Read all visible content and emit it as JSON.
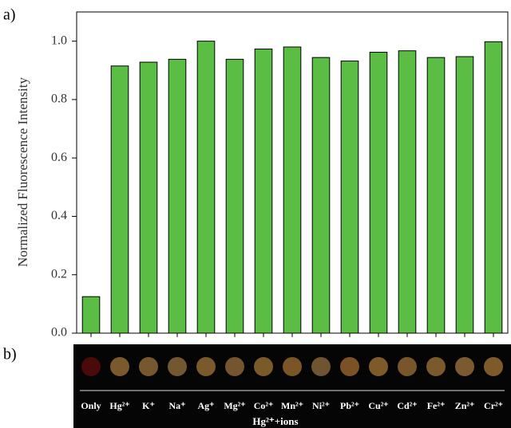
{
  "chart_data": {
    "type": "bar",
    "panel_labels": [
      "a)",
      "b)"
    ],
    "ylabel": "Normalized Fluorescence Intensity",
    "xlabel": "Hg²⁺+ions",
    "categories": [
      "Only",
      "Hg²⁺",
      "K⁺",
      "Na⁺",
      "Ag⁺",
      "Mg²⁺",
      "Co²⁺",
      "Mn²⁺",
      "Ni²⁺",
      "Pb²⁺",
      "Cu²⁺",
      "Cd²⁺",
      "Fe²⁺",
      "Zn²⁺",
      "Cr²⁺"
    ],
    "values": [
      0.125,
      0.915,
      0.928,
      0.938,
      1.0,
      0.938,
      0.973,
      0.98,
      0.944,
      0.932,
      0.962,
      0.967,
      0.944,
      0.947,
      0.998
    ],
    "color": "#5cbd45",
    "ylim": [
      0,
      1.1
    ],
    "yticks": [
      {
        "value": 0,
        "label": "0.0"
      },
      0.2,
      0.4,
      0.6,
      0.8,
      {
        "value": 1,
        "label": "1.0"
      }
    ],
    "photo_colors": [
      "#4a0a0a",
      "#7a5a2c",
      "#75582e",
      "#735730",
      "#7a5a2a",
      "#735630",
      "#7a5a28",
      "#7a5626",
      "#6e5430",
      "#7a5226",
      "#7e5a28",
      "#78552a",
      "#7a5a2c",
      "#7a5a2e",
      "#7e5a2a"
    ]
  }
}
